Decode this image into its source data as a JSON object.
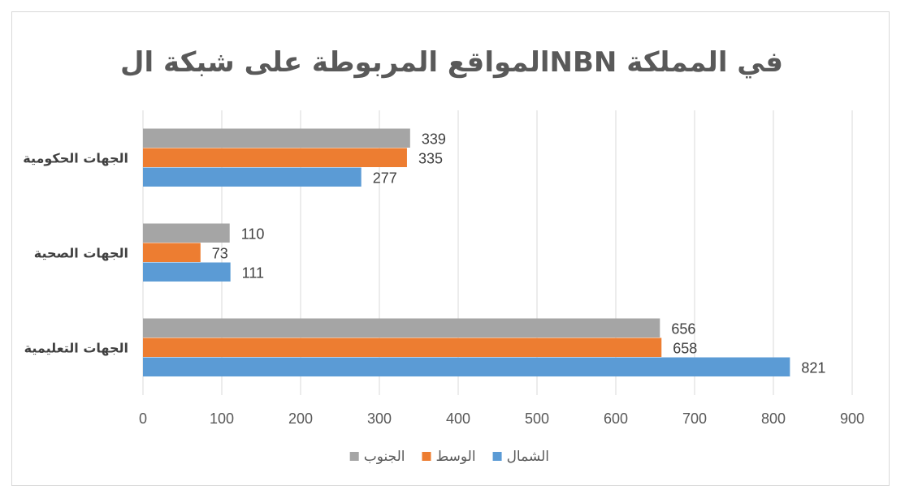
{
  "chart_data": {
    "type": "bar",
    "orientation": "horizontal",
    "title": "المواقع المربوطة على شبكة الNBN في المملكة",
    "categories": [
      "الجهات التعليمية",
      "الجهات الصحية",
      "الجهات الحكومية"
    ],
    "series": [
      {
        "name": "الشمال",
        "color": "#5b9bd5",
        "values": [
          821,
          111,
          277
        ]
      },
      {
        "name": "الوسط",
        "color": "#ed7d31",
        "values": [
          658,
          73,
          335
        ]
      },
      {
        "name": "الجنوب",
        "color": "#a5a5a5",
        "values": [
          656,
          110,
          339
        ]
      }
    ],
    "xlim": [
      0,
      900
    ],
    "xticks": [
      "0",
      "100",
      "200",
      "300",
      "400",
      "500",
      "600",
      "700",
      "800",
      "900"
    ],
    "grid": true,
    "legend": "bottom",
    "data_labels": true
  }
}
